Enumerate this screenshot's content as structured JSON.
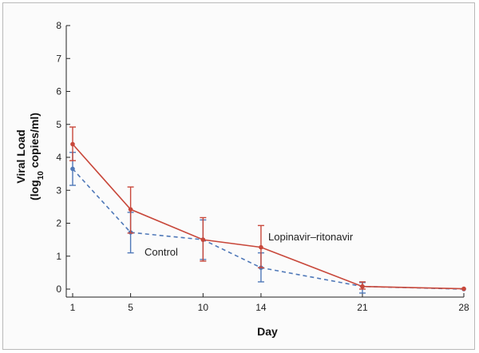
{
  "chart_data": {
    "type": "line",
    "x": [
      1,
      5,
      10,
      14,
      21,
      28
    ],
    "xlabel": "Day",
    "ylabel_main": "Viral Load",
    "ylabel_unit": {
      "open": "(log",
      "sub": "10",
      "close": " copies/ml)"
    },
    "xlim": [
      1,
      28
    ],
    "ylim": [
      0,
      8
    ],
    "xticks": [
      1,
      5,
      10,
      14,
      21,
      28
    ],
    "yticks": [
      0,
      1,
      2,
      3,
      4,
      5,
      6,
      7,
      8
    ],
    "grid": false,
    "series": [
      {
        "name": "Lopinavir–ritonavir",
        "color": "#c8473a",
        "dash": "solid",
        "values": [
          4.4,
          2.42,
          1.5,
          1.27,
          0.08,
          0.01
        ],
        "err_low": [
          3.9,
          1.7,
          0.85,
          0.65,
          0.0,
          0.0
        ],
        "err_high": [
          4.92,
          3.1,
          2.17,
          1.93,
          0.22,
          0.02
        ]
      },
      {
        "name": "Control",
        "color": "#4f78b8",
        "dash": "dashed",
        "values": [
          3.65,
          1.72,
          1.5,
          0.65,
          0.08,
          0.0
        ],
        "err_low": [
          3.15,
          1.1,
          0.9,
          0.22,
          -0.12,
          0.0
        ],
        "err_high": [
          4.15,
          2.33,
          2.1,
          1.1,
          0.2,
          0.01
        ]
      }
    ],
    "annotations": [
      {
        "text": "Lopinavir–ritonavir",
        "series": 0
      },
      {
        "text": "Control",
        "series": 1
      }
    ]
  }
}
